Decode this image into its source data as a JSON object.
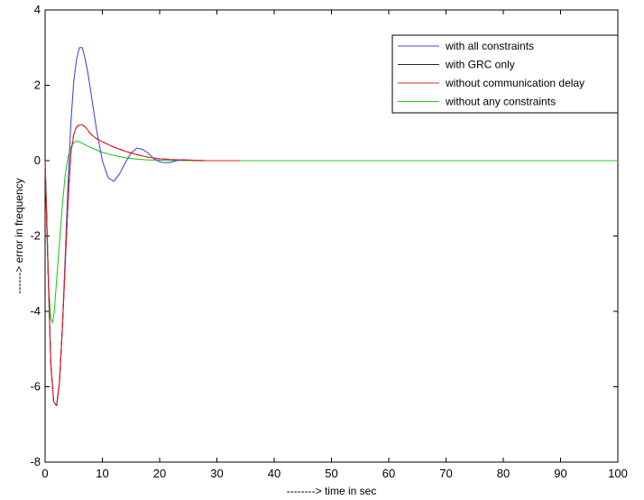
{
  "chart_data": {
    "type": "line",
    "title": "",
    "xlabel": "--------> time in sec",
    "ylabel": "------> error in frequency",
    "xlim": [
      0,
      100
    ],
    "ylim": [
      -8,
      4
    ],
    "xticks": [
      0,
      10,
      20,
      30,
      40,
      50,
      60,
      70,
      80,
      90,
      100
    ],
    "yticks": [
      -8,
      -6,
      -4,
      -2,
      0,
      2,
      4
    ],
    "grid": false,
    "legend_position": "top-right",
    "series": [
      {
        "name": "with all constraints",
        "color": "#4a4adf",
        "x": [
          0,
          0.5,
          1,
          1.5,
          2,
          2.5,
          3,
          3.5,
          4,
          4.5,
          5,
          5.5,
          6,
          6.5,
          7,
          7.5,
          8,
          9,
          10,
          11,
          12,
          13,
          14,
          15,
          16,
          17,
          18,
          19,
          20,
          21,
          22,
          23,
          24,
          26,
          28,
          30,
          34
        ],
        "y": [
          0,
          -2.8,
          -5.4,
          -6.4,
          -6.5,
          -5.9,
          -4.5,
          -2.6,
          -0.6,
          1.0,
          2.1,
          2.7,
          3.0,
          3.0,
          2.7,
          2.3,
          1.8,
          0.8,
          0.0,
          -0.45,
          -0.55,
          -0.35,
          -0.05,
          0.2,
          0.33,
          0.3,
          0.2,
          0.05,
          -0.03,
          -0.06,
          -0.04,
          0.0,
          0.02,
          0.01,
          0.0,
          0.0,
          0.0
        ]
      },
      {
        "name": "with GRC only",
        "color": "#222222",
        "x": [
          0,
          0.5,
          1,
          1.5,
          2,
          2.5,
          3,
          3.5,
          4,
          4.5,
          5,
          5.5,
          6,
          6.5,
          7,
          7.5,
          8,
          9,
          10,
          11,
          12,
          14,
          16,
          18,
          20,
          22,
          24,
          26,
          28,
          30,
          34
        ],
        "y": [
          0,
          -2.8,
          -5.4,
          -6.4,
          -6.5,
          -5.9,
          -4.5,
          -2.8,
          -1.1,
          0.2,
          0.7,
          0.9,
          0.95,
          0.95,
          0.9,
          0.8,
          0.7,
          0.58,
          0.5,
          0.43,
          0.36,
          0.25,
          0.16,
          0.09,
          0.05,
          0.03,
          0.02,
          0.01,
          0.0,
          0.0,
          0.0
        ]
      },
      {
        "name": "without communication delay",
        "color": "#e02020",
        "x": [
          0,
          0.5,
          1,
          1.5,
          2,
          2.5,
          3,
          3.5,
          4,
          4.5,
          5,
          5.5,
          6,
          6.5,
          7,
          7.5,
          8,
          9,
          10,
          11,
          12,
          14,
          16,
          18,
          20,
          22,
          24,
          26,
          28,
          30,
          34
        ],
        "y": [
          0,
          -2.8,
          -5.4,
          -6.4,
          -6.5,
          -5.9,
          -4.5,
          -2.8,
          -1.1,
          0.2,
          0.7,
          0.9,
          0.95,
          0.95,
          0.9,
          0.8,
          0.7,
          0.58,
          0.5,
          0.43,
          0.36,
          0.25,
          0.16,
          0.09,
          0.05,
          0.03,
          0.02,
          0.01,
          0.0,
          0.0,
          0.0
        ]
      },
      {
        "name": "without any constraints",
        "color": "#22cc22",
        "x": [
          0,
          0.3,
          0.6,
          1,
          1.3,
          1.6,
          2,
          2.5,
          3,
          3.5,
          4,
          4.5,
          5,
          5.5,
          6,
          7,
          8,
          9,
          10,
          12,
          14,
          16,
          18,
          20,
          25,
          30,
          40,
          50,
          60,
          70,
          80,
          90,
          100
        ],
        "y": [
          0,
          -1.5,
          -3.3,
          -4.2,
          -4.3,
          -4.0,
          -3.2,
          -2.2,
          -1.2,
          -0.4,
          0.1,
          0.35,
          0.48,
          0.52,
          0.5,
          0.42,
          0.35,
          0.28,
          0.22,
          0.14,
          0.08,
          0.04,
          0.02,
          0.01,
          0.0,
          0.0,
          0.0,
          0.0,
          0.0,
          0.0,
          0.0,
          0.0,
          0.0
        ]
      }
    ]
  }
}
